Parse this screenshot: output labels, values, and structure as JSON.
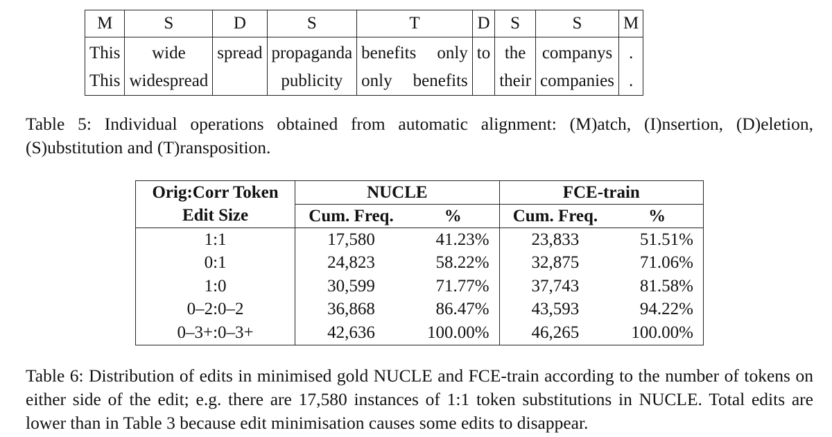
{
  "table5": {
    "ops": [
      "M",
      "S",
      "D",
      "S",
      "T",
      "D",
      "S",
      "S",
      "M"
    ],
    "orig": [
      "This",
      "wide",
      "spread",
      "propaganda",
      [
        "benefits",
        "only"
      ],
      "to",
      "the",
      "companys",
      "."
    ],
    "corr": [
      "This",
      "widespread",
      "",
      "publicity",
      [
        "only",
        "benefits"
      ],
      "",
      "their",
      "companies",
      "."
    ],
    "caption": "Table 5: Individual operations obtained from automatic alignment: (M)atch, (I)nsertion, (D)eletion, (S)ubstitution and (T)ransposition."
  },
  "table6": {
    "header": {
      "col0_line1": "Orig:Corr Token",
      "col0_line2": "Edit Size",
      "group1": "NUCLE",
      "group2": "FCE-train",
      "sub_freq": "Cum. Freq.",
      "sub_pct": "%"
    },
    "rows": [
      [
        "1:1",
        "17,580",
        "41.23%",
        "23,833",
        "51.51%"
      ],
      [
        "0:1",
        "24,823",
        "58.22%",
        "32,875",
        "71.06%"
      ],
      [
        "1:0",
        "30,599",
        "71.77%",
        "37,743",
        "81.58%"
      ],
      [
        "0–2:0–2",
        "36,868",
        "86.47%",
        "43,593",
        "94.22%"
      ],
      [
        "0–3+:0–3+",
        "42,636",
        "100.00%",
        "46,265",
        "100.00%"
      ]
    ],
    "caption": "Table 6: Distribution of edits in minimised gold NUCLE and FCE-train according to the number of tokens on either side of the edit; e.g. there are 17,580 instances of 1:1 token substitutions in NUCLE. Total edits are lower than in Table 3 because edit minimisation causes some edits to disappear."
  }
}
